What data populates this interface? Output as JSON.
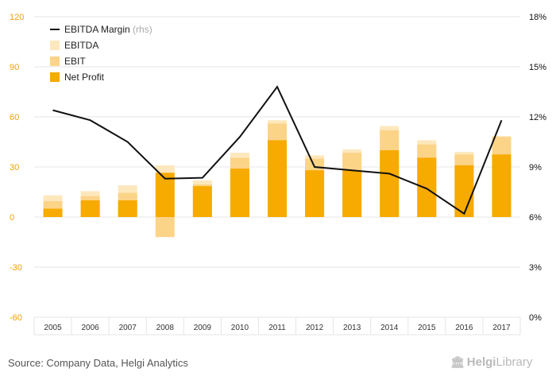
{
  "chart_data": {
    "type": "bar",
    "categories": [
      "2005",
      "2006",
      "2007",
      "2008",
      "2009",
      "2010",
      "2011",
      "2012",
      "2013",
      "2014",
      "2015",
      "2016",
      "2017"
    ],
    "series": [
      {
        "name": "EBITDA",
        "type": "bar",
        "values": [
          13.0,
          15.5,
          19.0,
          31.0,
          22.0,
          38.5,
          58.0,
          37.0,
          40.5,
          54.5,
          46.0,
          39.0,
          48.5
        ]
      },
      {
        "name": "EBIT",
        "type": "bar",
        "values": [
          9.5,
          12.5,
          14.5,
          -12.0,
          19.5,
          35.5,
          56.0,
          35.0,
          38.5,
          52.0,
          43.5,
          37.5,
          48.0
        ]
      },
      {
        "name": "Net Profit",
        "type": "bar",
        "values": [
          5.0,
          10.0,
          10.0,
          26.5,
          18.5,
          29.0,
          46.0,
          28.0,
          28.0,
          40.0,
          35.5,
          31.0,
          37.5
        ]
      },
      {
        "name": "EBITDA Margin",
        "name_suffix": "(rhs)",
        "type": "line",
        "axis": "right",
        "values": [
          12.4,
          11.8,
          10.5,
          8.3,
          8.35,
          10.8,
          13.8,
          9.0,
          8.8,
          8.6,
          7.7,
          6.2,
          11.8
        ]
      }
    ],
    "yleft": {
      "min": -60,
      "max": 120,
      "ticks": [
        -60,
        -30,
        0,
        30,
        60,
        90,
        120
      ]
    },
    "yright": {
      "min": 0,
      "max": 18,
      "ticks": [
        "0%",
        "3%",
        "6%",
        "9%",
        "12%",
        "15%",
        "18%"
      ]
    },
    "legend_placement": "top-left",
    "grid": true,
    "colors": {
      "EBITDA": "#fde8bd",
      "EBIT": "#fcd488",
      "Net Profit": "#f7aa00",
      "EBITDA Margin": "#111111",
      "left_tick": "#f0a300",
      "right_tick": "#111111",
      "grid": "#e6e6e6"
    }
  },
  "footer": {
    "source": "Source: Company Data, Helgi Analytics",
    "logo_name": "Helgi",
    "logo_suffix": "Library"
  }
}
